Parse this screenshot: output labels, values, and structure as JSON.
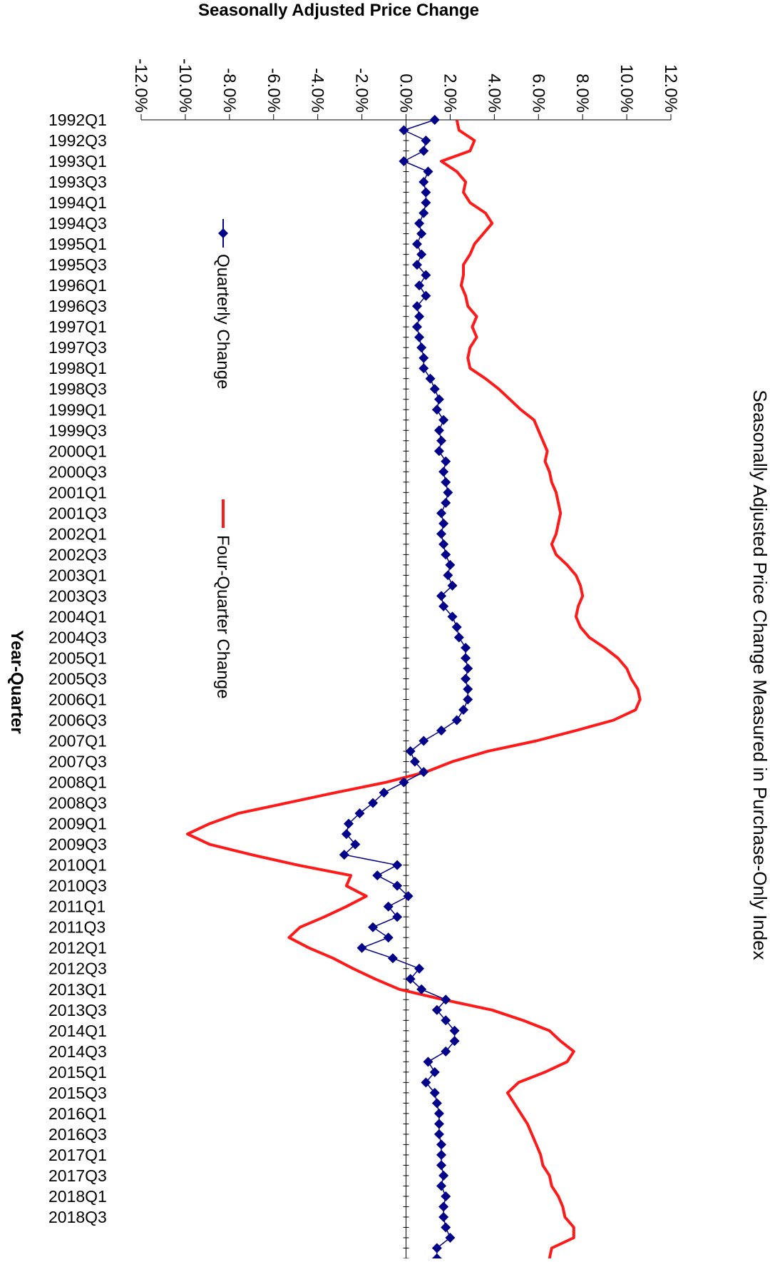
{
  "chart_data": {
    "type": "line",
    "orientation": "rotated-90-clockwise",
    "title": "Seasonally Adjusted Price Change Measured in Purchase-Only Index",
    "ylabel": "Seasonally Adjusted Price Change",
    "xlabel": "Year-Quarter",
    "ylim": [
      -12.0,
      12.0
    ],
    "yticks": [
      "-12.0%",
      "-10.0%",
      "-8.0%",
      "-6.0%",
      "-4.0%",
      "-2.0%",
      "0.0%",
      "2.0%",
      "4.0%",
      "6.0%",
      "8.0%",
      "10.0%",
      "12.0%"
    ],
    "ytick_values": [
      -12,
      -10,
      -8,
      -6,
      -4,
      -2,
      0,
      2,
      4,
      6,
      8,
      10,
      12
    ],
    "xtick_labels": [
      "1992Q1",
      "1992Q3",
      "1993Q1",
      "1993Q3",
      "1994Q1",
      "1994Q3",
      "1995Q1",
      "1995Q3",
      "1996Q1",
      "1996Q3",
      "1997Q1",
      "1997Q3",
      "1998Q1",
      "1998Q3",
      "1999Q1",
      "1999Q3",
      "2000Q1",
      "2000Q3",
      "2001Q1",
      "2001Q3",
      "2002Q1",
      "2002Q3",
      "2003Q1",
      "2003Q3",
      "2004Q1",
      "2004Q3",
      "2005Q1",
      "2005Q3",
      "2006Q1",
      "2006Q3",
      "2007Q1",
      "2007Q3",
      "2008Q1",
      "2008Q3",
      "2009Q1",
      "2009Q3",
      "2010Q1",
      "2010Q3",
      "2011Q1",
      "2011Q3",
      "2012Q1",
      "2012Q3",
      "2013Q1",
      "2013Q3",
      "2014Q1",
      "2014Q3",
      "2015Q1",
      "2015Q3",
      "2016Q1",
      "2016Q3",
      "2017Q1",
      "2017Q3",
      "2018Q1",
      "2018Q3"
    ],
    "legend": {
      "placement": "left",
      "entries": [
        "Quarterly Change",
        "Four-Quarter Change"
      ]
    },
    "grid": false,
    "series": [
      {
        "name": "Quarterly Change",
        "color": "#00008b",
        "marker": "diamond",
        "values": [
          1.3,
          -0.1,
          0.9,
          0.8,
          -0.1,
          1.0,
          0.8,
          0.9,
          0.9,
          0.8,
          0.6,
          0.7,
          0.5,
          0.7,
          0.5,
          0.9,
          0.6,
          0.9,
          0.5,
          0.6,
          0.5,
          0.6,
          0.7,
          0.8,
          0.8,
          1.1,
          1.3,
          1.5,
          1.4,
          1.7,
          1.5,
          1.6,
          1.5,
          1.8,
          1.7,
          1.8,
          1.9,
          1.8,
          1.6,
          1.7,
          1.6,
          1.7,
          1.8,
          2.0,
          1.9,
          2.1,
          1.6,
          1.7,
          2.1,
          2.3,
          2.4,
          2.7,
          2.7,
          2.8,
          2.7,
          2.8,
          2.8,
          2.6,
          2.3,
          1.6,
          0.8,
          0.2,
          0.4,
          0.8,
          -0.1,
          -1.0,
          -1.5,
          -2.1,
          -2.6,
          -2.7,
          -2.3,
          -2.8,
          -0.4,
          -1.3,
          -0.4,
          0.1,
          -0.8,
          -0.4,
          -1.5,
          -0.8,
          -2.0,
          -0.6,
          0.6,
          0.2,
          0.7,
          1.8,
          1.4,
          1.8,
          2.2,
          2.2,
          1.8,
          1.0,
          1.3,
          0.9,
          1.3,
          1.4,
          1.5,
          1.5,
          1.5,
          1.6,
          1.6,
          1.6,
          1.7,
          1.6,
          1.8,
          1.7,
          1.7,
          1.8,
          2.0,
          1.4,
          1.4
        ]
      },
      {
        "name": "Four-Quarter Change",
        "color": "#ff1a1a",
        "values": [
          2.3,
          2.4,
          3.1,
          2.9,
          1.6,
          2.3,
          2.7,
          2.6,
          2.9,
          3.6,
          3.9,
          3.5,
          3.1,
          2.9,
          2.6,
          2.6,
          2.5,
          2.7,
          2.8,
          3.2,
          3.0,
          3.2,
          2.9,
          2.8,
          2.9,
          3.6,
          4.2,
          4.7,
          5.2,
          5.8,
          6.0,
          6.2,
          6.4,
          6.3,
          6.5,
          6.6,
          6.8,
          6.9,
          7.0,
          6.9,
          6.8,
          6.6,
          6.8,
          7.3,
          7.7,
          7.9,
          8.0,
          7.8,
          7.7,
          7.9,
          8.3,
          9.0,
          9.6,
          10.0,
          10.2,
          10.5,
          10.6,
          10.4,
          9.4,
          7.7,
          5.9,
          3.7,
          2.1,
          0.9,
          -0.9,
          -3.2,
          -5.4,
          -7.6,
          -8.9,
          -9.9,
          -8.9,
          -7.0,
          -4.9,
          -2.5,
          -2.7,
          -1.8,
          -2.7,
          -3.7,
          -4.8,
          -5.3,
          -4.4,
          -3.3,
          -2.4,
          -1.4,
          -0.3,
          1.7,
          3.9,
          5.3,
          6.5,
          7.0,
          7.6,
          7.3,
          6.3,
          5.1,
          4.6,
          4.9,
          5.2,
          5.5,
          5.7,
          5.9,
          6.1,
          6.2,
          6.5,
          6.6,
          6.9,
          7.1,
          7.2,
          7.6,
          7.6,
          6.6,
          6.5
        ]
      }
    ]
  }
}
